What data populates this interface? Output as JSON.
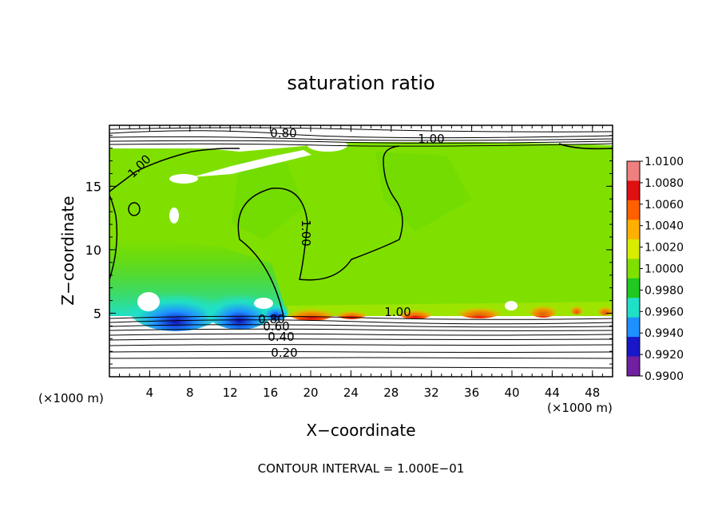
{
  "chart_data": {
    "type": "heatmap",
    "title": "saturation ratio",
    "xlabel": "X−coordinate",
    "ylabel": "Z−coordinate",
    "x_unit_label": "(×1000 m)",
    "z_unit_label": "(×1000 m)",
    "footer": "CONTOUR INTERVAL = 1.000E−01",
    "xlim": [
      0,
      50
    ],
    "ylim": [
      0,
      19.8
    ],
    "x_ticks": [
      "4",
      "8",
      "12",
      "16",
      "20",
      "24",
      "28",
      "32",
      "36",
      "40",
      "44",
      "48"
    ],
    "y_ticks": [
      "5",
      "10",
      "15"
    ],
    "colorbar": {
      "labels": [
        "1.0100",
        "1.0080",
        "1.0060",
        "1.0040",
        "1.0020",
        "1.0000",
        "0.9980",
        "0.9960",
        "0.9940",
        "0.9920",
        "0.9900"
      ],
      "colors": [
        "#f08080",
        "#e01010",
        "#ff6000",
        "#ffb000",
        "#d8ec00",
        "#7fe000",
        "#20c820",
        "#20e0c8",
        "#1e90ff",
        "#1818c8",
        "#7020a0"
      ]
    },
    "contour_labels": [
      "0.80",
      "1.00",
      "1.00",
      "1.00",
      "1.00",
      "0.80",
      "0.60",
      "0.40",
      "0.20"
    ],
    "region_summary": [
      {
        "region": "upper layer z > 18",
        "value": "< 0.80 (white, stratified)"
      },
      {
        "region": "main cloud layer z 5–18",
        "value": "≈ 1.0000 (green)"
      },
      {
        "region": "lower-left near z 5, x 2–18",
        "value": "0.9920–0.9960 (blue)"
      },
      {
        "region": "cloud base near z 5, x 18–50",
        "value": "1.0040–1.0080 (orange/red)"
      },
      {
        "region": "below z 5",
        "value": "0.20–0.80 (white, stratified)"
      }
    ]
  }
}
